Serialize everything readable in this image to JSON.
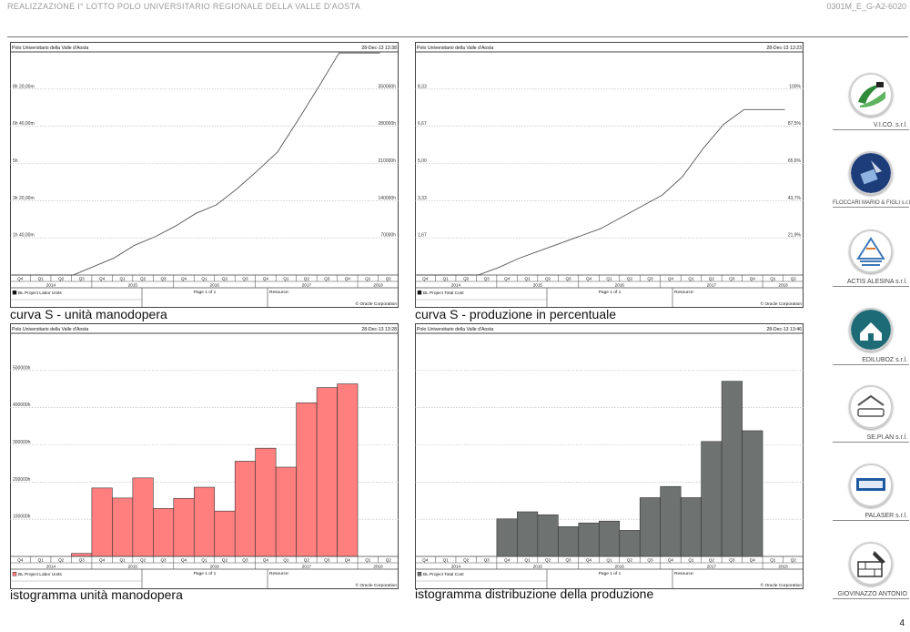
{
  "header": {
    "project_title": "REALIZZAZIONE I° LOTTO POLO UNIVERSITARIO REGIONALE DELLA VALLE D'AOSTA",
    "doc_code": "0301M_E_G-A2-6020"
  },
  "page_number": "4",
  "captions": [
    "curva S - unità manodopera",
    "curva S - produzione in percentuale",
    "istogramma unità manodopera",
    "istogramma distribuzione della produzione"
  ],
  "axis": {
    "quarters": [
      "Q4",
      "Q1",
      "Q2",
      "Q3",
      "Q4",
      "Q1",
      "Q2",
      "Q3",
      "Q4",
      "Q1",
      "Q2",
      "Q3",
      "Q4",
      "Q1",
      "Q2",
      "Q3",
      "Q4",
      "Q1",
      "Q2"
    ],
    "years": [
      {
        "label": "2014",
        "from": 0,
        "to": 3
      },
      {
        "label": "2015",
        "from": 4,
        "to": 7
      },
      {
        "label": "2016",
        "from": 8,
        "to": 11
      },
      {
        "label": "2017",
        "from": 12,
        "to": 16
      },
      {
        "label": "2018",
        "from": 17,
        "to": 18
      }
    ]
  },
  "companies": [
    {
      "name": "V.I.CO. s.r.l.",
      "icon": "vico-logo-icon",
      "color": "#2f8a3a"
    },
    {
      "name": "FLOCCARI MARIO & FIGLI s.r.l.",
      "icon": "floccari-logo-icon",
      "color": "#1c3d7a"
    },
    {
      "name": "ACTIS ALESINA s.r.l.",
      "icon": "actis-logo-icon",
      "color": "#3c78b8"
    },
    {
      "name": "EDILUBOZ s.r.l.",
      "icon": "ediluboz-logo-icon",
      "color": "#1e6b78"
    },
    {
      "name": "SE.PI.AN s.r.l.",
      "icon": "sepian-logo-icon",
      "color": "#555555"
    },
    {
      "name": "PALASER s.r.l.",
      "icon": "palaser-logo-icon",
      "color": "#1e5aa0"
    },
    {
      "name": "GIOVINAZZO ANTONIO",
      "icon": "giovinazzo-logo-icon",
      "color": "#333333"
    }
  ],
  "chart_data": [
    {
      "type": "line",
      "title": "Polo Universitario della Valle d'Aosta",
      "timestamp": "28-Dec-13 13:38",
      "legend": "BL Project Labor Units",
      "page_info": "Page 1 of 1",
      "resource_label": "Resource:",
      "copyright": "© Oracle Corporation",
      "color": "#555555",
      "left_ticks": [
        "1h 40,00m",
        "3h 20,00m",
        "5h",
        "6h 40,00m",
        "8h 20,00m"
      ],
      "right_ticks": [
        "70000h",
        "140000h",
        "210000h",
        "280000h",
        "350000h"
      ],
      "ylim": [
        0,
        420000
      ],
      "x_quarter_index": [
        0,
        3,
        4,
        5,
        6,
        7,
        8,
        9,
        10,
        11,
        12,
        13,
        14,
        15,
        16,
        17,
        18
      ],
      "values": [
        0,
        0,
        16000,
        32000,
        56000,
        72000,
        92000,
        116000,
        132000,
        162000,
        196000,
        232000,
        292000,
        354000,
        418000,
        418000,
        418000
      ]
    },
    {
      "type": "line",
      "title": "Polo Universitario della Valle d'Aosta",
      "timestamp": "28-Dec-13 13:23",
      "legend": "BL Project Total Cost",
      "page_info": "Page 1 of 1",
      "resource_label": "Resource:",
      "copyright": "© Oracle Corporation",
      "color": "#555555",
      "left_ticks": [
        "1,67",
        "3,33",
        "5,00",
        "6,67",
        "8,33"
      ],
      "right_ticks": [
        "21,9%",
        "43,7%",
        "65,6%",
        "87,5%",
        "100%"
      ],
      "ylim": [
        0,
        120
      ],
      "x_quarter_index": [
        0,
        3,
        4,
        5,
        6,
        7,
        8,
        9,
        10,
        11,
        12,
        13,
        14,
        15,
        16,
        17,
        18
      ],
      "values": [
        0,
        0,
        4,
        9,
        13,
        17,
        21,
        25,
        31,
        37,
        43,
        53,
        68,
        81,
        89,
        89,
        89
      ]
    },
    {
      "type": "bar",
      "title": "Polo Universitario della Valle d'Aosta",
      "timestamp": "28-Dec-13 13:28",
      "legend": "BL Project Labor Units",
      "page_info": "Page 1 of 1",
      "resource_label": "Resource:",
      "copyright": "© Oracle Corporation",
      "color": "#ff7f7f",
      "left_ticks": [
        "100000h",
        "200000h",
        "300000h",
        "400000h",
        "500000h"
      ],
      "right_ticks": [],
      "ylim": [
        0,
        600000
      ],
      "values": [
        0,
        0,
        0,
        8000,
        184000,
        157000,
        211000,
        129000,
        156000,
        186000,
        122000,
        256000,
        291000,
        240000,
        413000,
        454000,
        464000,
        0,
        0
      ]
    },
    {
      "type": "bar",
      "title": "Polo Universitario della Valle d'Aosta",
      "timestamp": "28-Dec-13 13:46",
      "legend": "BL Project Total Cost",
      "page_info": "Page 1 of 1",
      "resource_label": "Resource:",
      "copyright": "© Oracle Corporation",
      "color": "#6e7371",
      "left_ticks": [],
      "right_ticks": [],
      "ylim": [
        0,
        600000
      ],
      "values": [
        0,
        0,
        0,
        0,
        101000,
        120000,
        112000,
        80000,
        90000,
        95000,
        70000,
        158000,
        188000,
        158000,
        309000,
        471000,
        338000,
        0,
        0
      ]
    }
  ]
}
